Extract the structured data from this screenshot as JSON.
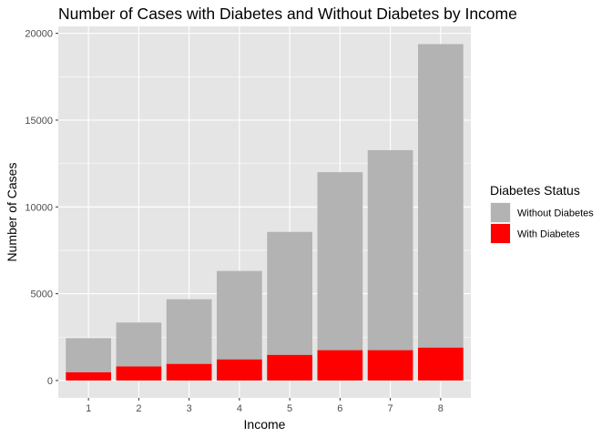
{
  "chart_data": {
    "type": "bar",
    "stacked": true,
    "title": "Number of Cases with Diabetes and Without Diabetes by Income",
    "xlabel": "Income",
    "ylabel": "Number of Cases",
    "categories": [
      "1",
      "2",
      "3",
      "4",
      "5",
      "6",
      "7",
      "8"
    ],
    "ylim": [
      -1000,
      20400
    ],
    "yticks": [
      0,
      5000,
      10000,
      15000,
      20000
    ],
    "ytick_labels": [
      "0",
      "5000",
      "10000",
      "15000",
      "20000"
    ],
    "series": [
      {
        "name": "With Diabetes",
        "color": "#ff0000",
        "values": [
          480,
          810,
          960,
          1220,
          1480,
          1750,
          1750,
          1900
        ]
      },
      {
        "name": "Without Diabetes",
        "color": "#b3b3b3",
        "values": [
          1960,
          2530,
          3720,
          5090,
          7080,
          10250,
          11520,
          17480
        ]
      }
    ],
    "legend": {
      "title": "Diabetes Status",
      "position": "right",
      "entries": [
        {
          "label": "Without Diabetes",
          "color": "#b3b3b3"
        },
        {
          "label": "With Diabetes",
          "color": "#ff0000"
        }
      ]
    },
    "panel_background": "#e5e5e5",
    "grid": true,
    "grid_color": "#ffffff"
  }
}
